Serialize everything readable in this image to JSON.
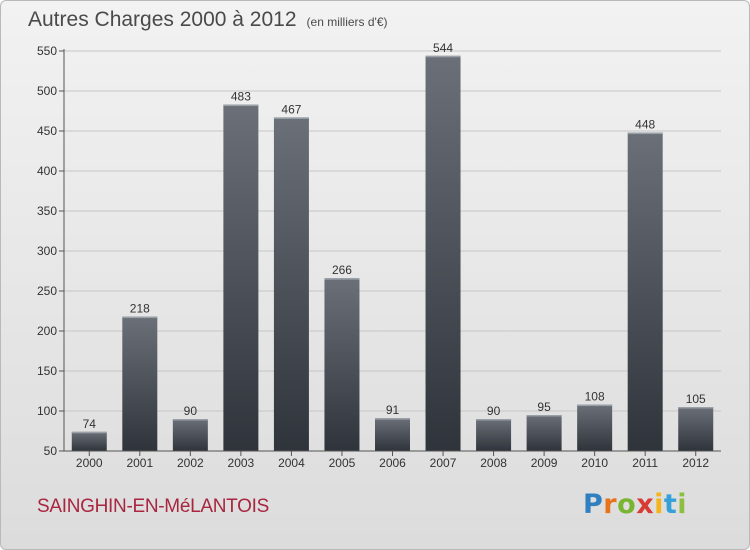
{
  "title": "Autres Charges 2000 à 2012",
  "unit_note": "(en milliers d'€)",
  "commune": "SAINGHIN-EN-MéLANTOIS",
  "logo": {
    "letters": [
      "P",
      "r",
      "o",
      "x",
      "i",
      "t",
      "i"
    ],
    "colors": [
      "#2f7fc1",
      "#e8731d",
      "#79b530",
      "#d83a34",
      "#f3b51b",
      "#34a0d8",
      "#8cbf3f"
    ]
  },
  "colors": {
    "bar_top": "#6b7078",
    "bar_bottom": "#2f343b",
    "title": "#4a4a4a",
    "commune": "#a8263f"
  },
  "chart_data": {
    "type": "bar",
    "categories": [
      "2000",
      "2001",
      "2002",
      "2003",
      "2004",
      "2005",
      "2006",
      "2007",
      "2008",
      "2009",
      "2010",
      "2011",
      "2012"
    ],
    "values": [
      74,
      218,
      90,
      483,
      467,
      266,
      91,
      544,
      90,
      95,
      108,
      448,
      105
    ],
    "ylim": [
      50,
      550
    ],
    "yticks": [
      50,
      100,
      150,
      200,
      250,
      300,
      350,
      400,
      450,
      500,
      550
    ],
    "grid": true,
    "data_labels": true
  }
}
